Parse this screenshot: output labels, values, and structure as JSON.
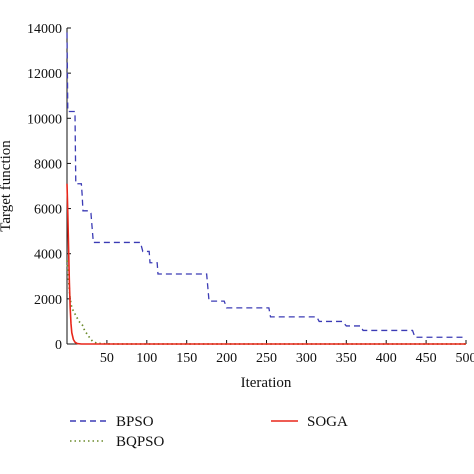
{
  "chart_data": {
    "type": "line",
    "title": "",
    "xlabel": "Iteration",
    "ylabel": "Target function",
    "xlim": [
      0,
      500
    ],
    "ylim": [
      0,
      14000
    ],
    "xticks": [
      "50",
      "100",
      "150",
      "200",
      "250",
      "300",
      "350",
      "400",
      "450",
      "500"
    ],
    "yticks": [
      "0",
      "2000",
      "4000",
      "6000",
      "8000",
      "10000",
      "12000",
      "14000"
    ],
    "grid": false,
    "legend_position": "bottom",
    "series": [
      {
        "name": "BPSO",
        "color": "#3b3bb5",
        "dash": "dashed",
        "step": true,
        "points": [
          [
            0,
            13800
          ],
          [
            1,
            10300
          ],
          [
            3,
            10300
          ],
          [
            10,
            10300
          ],
          [
            11,
            7100
          ],
          [
            18,
            7100
          ],
          [
            19,
            6600
          ],
          [
            20,
            5900
          ],
          [
            27,
            5900
          ],
          [
            30,
            5800
          ],
          [
            33,
            4500
          ],
          [
            92,
            4500
          ],
          [
            95,
            4100
          ],
          [
            103,
            4100
          ],
          [
            104,
            3600
          ],
          [
            113,
            3600
          ],
          [
            114,
            3100
          ],
          [
            175,
            3100
          ],
          [
            178,
            1900
          ],
          [
            197,
            1900
          ],
          [
            200,
            1600
          ],
          [
            253,
            1600
          ],
          [
            255,
            1200
          ],
          [
            313,
            1200
          ],
          [
            316,
            1000
          ],
          [
            345,
            1000
          ],
          [
            350,
            800
          ],
          [
            368,
            800
          ],
          [
            371,
            600
          ],
          [
            433,
            600
          ],
          [
            436,
            300
          ],
          [
            500,
            300
          ]
        ]
      },
      {
        "name": "BQPSO",
        "color": "#6a8a2a",
        "dash": "dotted",
        "step": false,
        "points": [
          [
            0,
            3700
          ],
          [
            2,
            2800
          ],
          [
            4,
            2000
          ],
          [
            6,
            1600
          ],
          [
            9,
            1400
          ],
          [
            12,
            1200
          ],
          [
            15,
            1000
          ],
          [
            18,
            900
          ],
          [
            20,
            800
          ],
          [
            22,
            600
          ],
          [
            25,
            450
          ],
          [
            28,
            300
          ],
          [
            32,
            120
          ],
          [
            37,
            40
          ],
          [
            45,
            10
          ],
          [
            60,
            0
          ],
          [
            500,
            0
          ]
        ]
      },
      {
        "name": "SOGA",
        "color": "#e8261a",
        "dash": "solid",
        "step": false,
        "points": [
          [
            0,
            7100
          ],
          [
            1,
            5800
          ],
          [
            2,
            4200
          ],
          [
            3,
            2700
          ],
          [
            4,
            1600
          ],
          [
            5,
            900
          ],
          [
            6,
            500
          ],
          [
            8,
            200
          ],
          [
            10,
            80
          ],
          [
            13,
            20
          ],
          [
            18,
            0
          ],
          [
            500,
            0
          ]
        ]
      }
    ]
  }
}
